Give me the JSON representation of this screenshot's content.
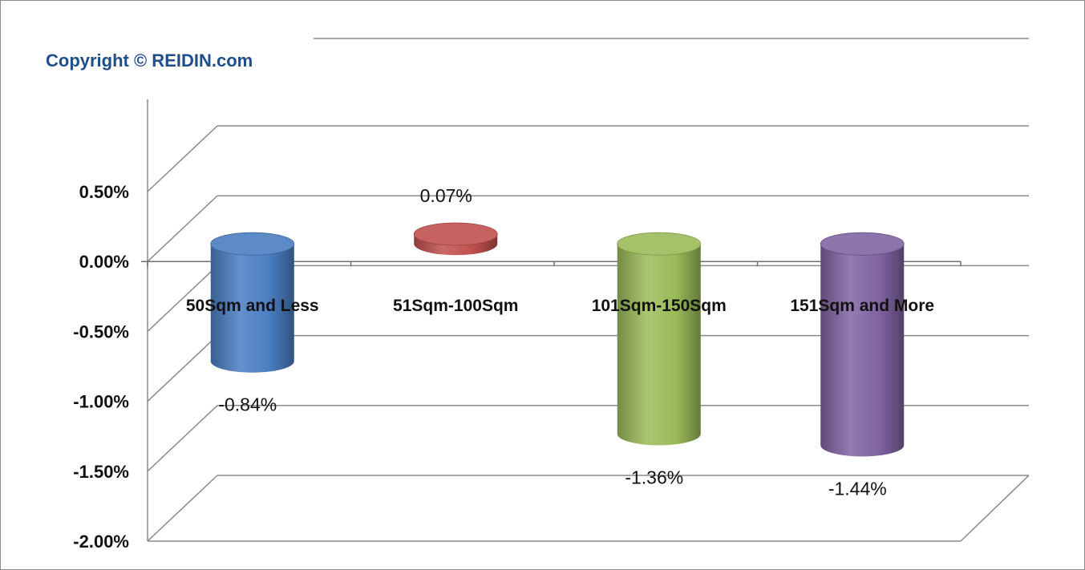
{
  "copyright": "Copyright © REIDIN.com",
  "chart_data": {
    "type": "bar",
    "style": "3d-cylinder",
    "categories": [
      "50Sqm and Less",
      "51Sqm-100Sqm",
      "101Sqm-150Sqm",
      "151Sqm and More"
    ],
    "values": [
      -0.84,
      0.07,
      -1.36,
      -1.44
    ],
    "data_labels": [
      "-0.84%",
      "0.07%",
      "-1.36%",
      "-1.44%"
    ],
    "colors": [
      "#4a7ec2",
      "#c0504d",
      "#9bbb59",
      "#8064a2"
    ],
    "yticks": [
      0.5,
      0.0,
      -0.5,
      -1.0,
      -1.5,
      -2.0
    ],
    "ytick_labels": [
      "0.50%",
      "0.00%",
      "-0.50%",
      "-1.00%",
      "-1.50%",
      "-2.00%"
    ],
    "ylim": [
      -2.0,
      0.5
    ],
    "grid": true,
    "title": "",
    "xlabel": "",
    "ylabel": ""
  }
}
